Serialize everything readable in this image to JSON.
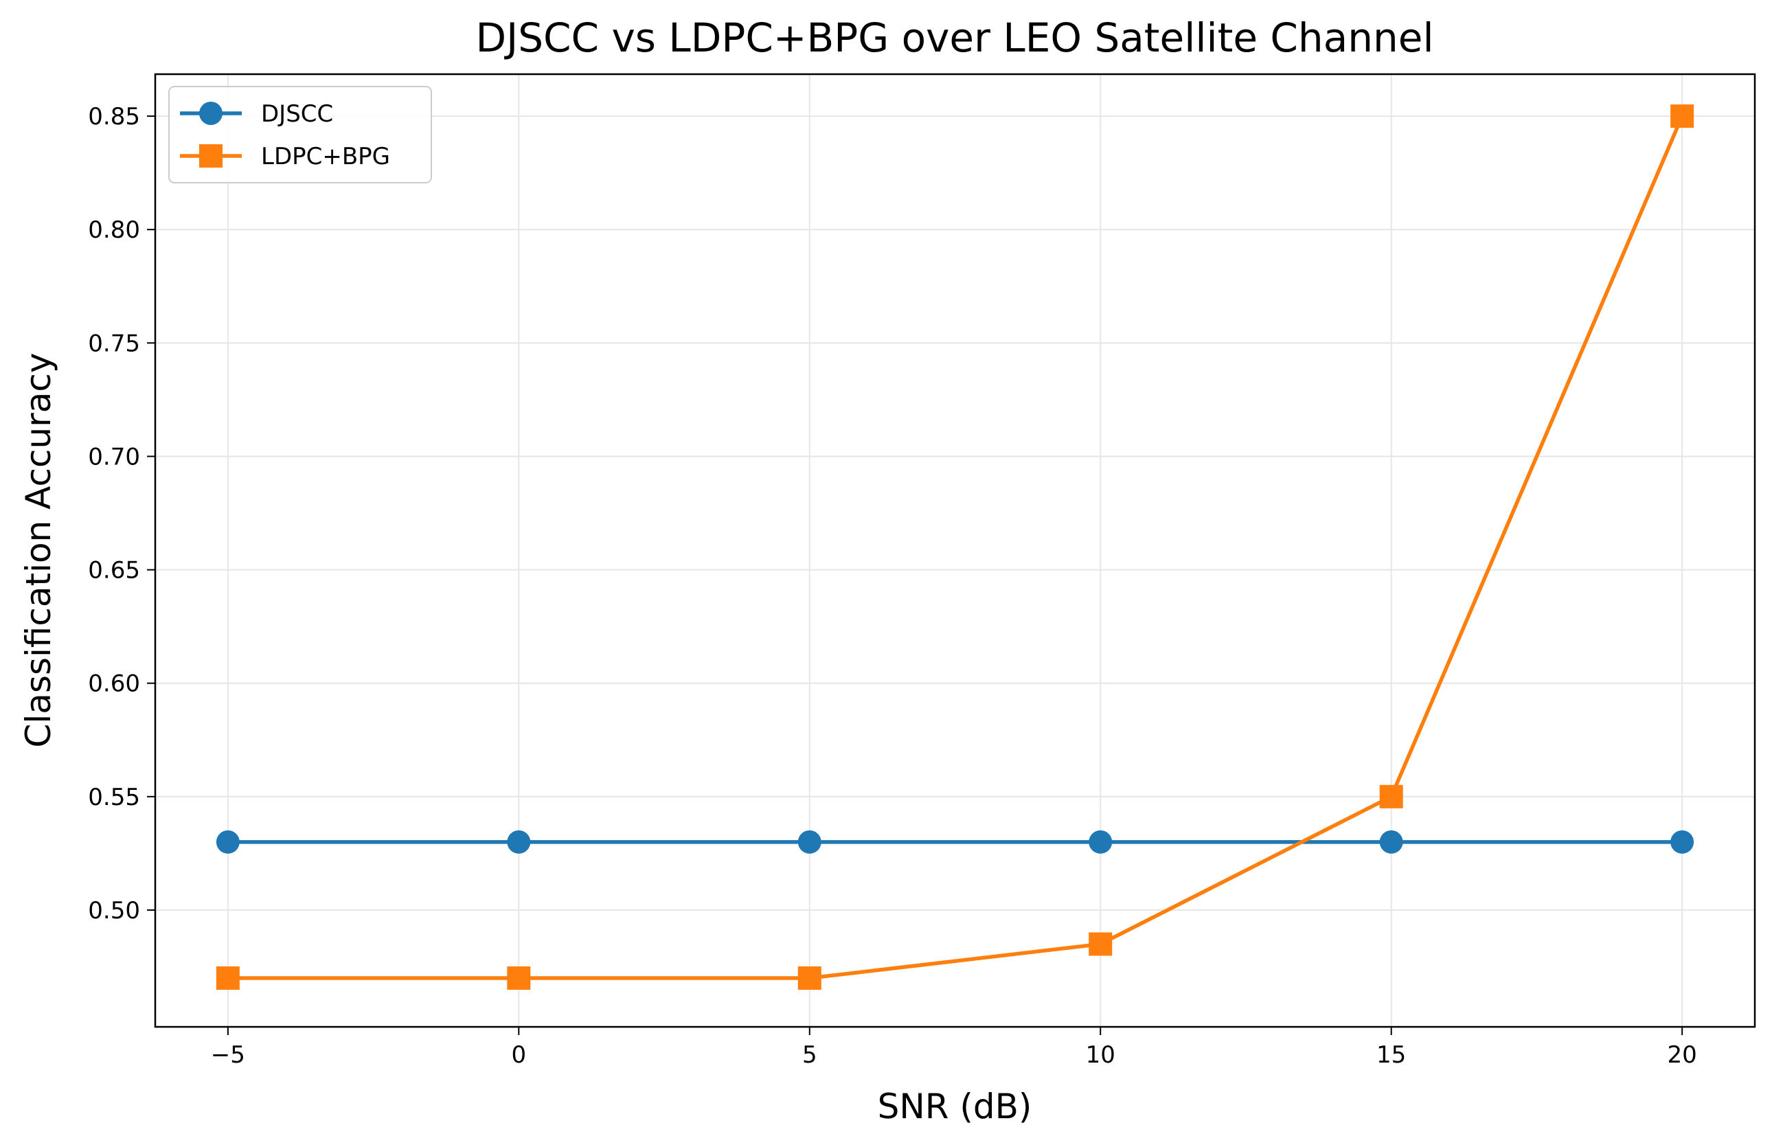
{
  "chart_data": {
    "type": "line",
    "title": "DJSCC vs LDPC+BPG over LEO Satellite Channel",
    "xlabel": "SNR (dB)",
    "ylabel": "Classification Accuracy",
    "x": [
      -5,
      0,
      5,
      10,
      15,
      20
    ],
    "xlim": [
      -6.25,
      21.25
    ],
    "ylim": [
      0.4485,
      0.8685
    ],
    "x_ticks": [
      -5,
      0,
      5,
      10,
      15,
      20
    ],
    "x_tick_labels": [
      "−5",
      "0",
      "5",
      "10",
      "15",
      "20"
    ],
    "y_ticks": [
      0.5,
      0.55,
      0.6,
      0.65,
      0.7,
      0.75,
      0.8,
      0.85
    ],
    "y_tick_labels": [
      "0.50",
      "0.55",
      "0.60",
      "0.65",
      "0.70",
      "0.75",
      "0.80",
      "0.85"
    ],
    "grid": true,
    "legend_position": "top-left",
    "series": [
      {
        "name": "DJSCC",
        "values": [
          0.53,
          0.53,
          0.53,
          0.53,
          0.53,
          0.53
        ],
        "color": "#1f77b4",
        "marker": "circle"
      },
      {
        "name": "LDPC+BPG",
        "values": [
          0.47,
          0.47,
          0.47,
          0.485,
          0.55,
          0.85
        ],
        "color": "#ff7f0e",
        "marker": "square"
      }
    ]
  }
}
